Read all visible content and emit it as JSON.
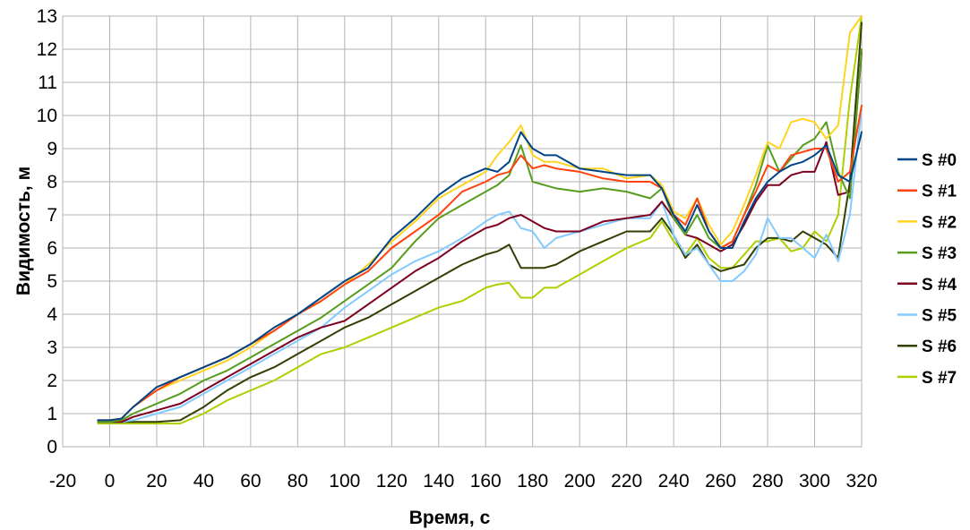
{
  "chart_data": {
    "type": "line",
    "title": "",
    "xlabel": "Время, с",
    "ylabel": "Видимость, м",
    "xlim": [
      -20,
      320
    ],
    "ylim": [
      0,
      13
    ],
    "xticks": [
      -20,
      0,
      20,
      40,
      60,
      80,
      100,
      120,
      140,
      160,
      180,
      200,
      220,
      240,
      260,
      280,
      300,
      320
    ],
    "yticks": [
      0,
      1,
      2,
      3,
      4,
      5,
      6,
      7,
      8,
      9,
      10,
      11,
      12,
      13
    ],
    "grid": true,
    "legend_position": "right",
    "x": [
      -5,
      0,
      5,
      10,
      20,
      30,
      40,
      50,
      60,
      70,
      80,
      90,
      100,
      110,
      120,
      130,
      140,
      150,
      160,
      165,
      170,
      175,
      180,
      185,
      190,
      200,
      210,
      220,
      230,
      235,
      240,
      245,
      250,
      255,
      260,
      265,
      270,
      275,
      280,
      285,
      290,
      295,
      300,
      305,
      310,
      315,
      320
    ],
    "series": [
      {
        "name": "S #0",
        "color": "#004586",
        "values": [
          0.8,
          0.8,
          0.85,
          1.2,
          1.8,
          2.1,
          2.4,
          2.7,
          3.1,
          3.6,
          4.0,
          4.5,
          5.0,
          5.4,
          6.3,
          6.9,
          7.6,
          8.1,
          8.4,
          8.3,
          8.6,
          9.5,
          9.0,
          8.8,
          8.8,
          8.4,
          8.3,
          8.2,
          8.2,
          7.8,
          7.0,
          6.5,
          7.3,
          6.5,
          6.0,
          6.0,
          6.8,
          7.5,
          8.0,
          8.3,
          8.5,
          8.6,
          8.8,
          9.1,
          8.2,
          8.0,
          9.5
        ]
      },
      {
        "name": "S #1",
        "color": "#ff420e",
        "values": [
          0.8,
          0.8,
          0.85,
          1.2,
          1.7,
          2.1,
          2.4,
          2.7,
          3.1,
          3.5,
          4.0,
          4.4,
          4.9,
          5.3,
          6.0,
          6.5,
          7.0,
          7.7,
          8.0,
          8.2,
          8.3,
          8.8,
          8.4,
          8.5,
          8.4,
          8.3,
          8.1,
          8.0,
          8.0,
          7.8,
          7.0,
          6.7,
          7.5,
          6.5,
          6.0,
          6.2,
          7.0,
          7.7,
          8.5,
          8.3,
          8.8,
          8.9,
          9.0,
          9.0,
          8.0,
          8.3,
          10.3
        ]
      },
      {
        "name": "S #2",
        "color": "#ffd320",
        "values": [
          0.8,
          0.8,
          0.85,
          1.2,
          1.7,
          2.0,
          2.3,
          2.6,
          3.0,
          3.5,
          4.0,
          4.4,
          4.9,
          5.5,
          6.2,
          6.8,
          7.5,
          7.9,
          8.3,
          8.8,
          9.2,
          9.7,
          8.8,
          8.6,
          8.6,
          8.4,
          8.4,
          8.1,
          8.2,
          7.9,
          7.1,
          6.9,
          7.5,
          6.7,
          6.1,
          6.5,
          7.3,
          8.2,
          9.2,
          9.0,
          9.8,
          9.9,
          9.8,
          9.3,
          9.7,
          12.5,
          13.0
        ]
      },
      {
        "name": "S #3",
        "color": "#579d1c",
        "values": [
          0.75,
          0.75,
          0.8,
          1.0,
          1.3,
          1.6,
          2.0,
          2.3,
          2.7,
          3.1,
          3.5,
          3.9,
          4.4,
          4.9,
          5.4,
          6.2,
          6.9,
          7.3,
          7.7,
          7.9,
          8.2,
          9.1,
          8.0,
          7.9,
          7.8,
          7.7,
          7.8,
          7.7,
          7.5,
          7.8,
          6.9,
          6.4,
          7.0,
          6.3,
          6.0,
          6.2,
          7.0,
          7.9,
          9.1,
          8.3,
          8.7,
          9.1,
          9.3,
          9.8,
          8.3,
          7.5,
          12.0
        ]
      },
      {
        "name": "S #4",
        "color": "#7e0021",
        "values": [
          0.75,
          0.75,
          0.75,
          0.9,
          1.1,
          1.3,
          1.7,
          2.1,
          2.5,
          2.9,
          3.3,
          3.6,
          3.8,
          4.3,
          4.8,
          5.3,
          5.7,
          6.2,
          6.6,
          6.7,
          6.9,
          7.0,
          6.8,
          6.6,
          6.5,
          6.5,
          6.8,
          6.9,
          7.0,
          7.4,
          6.9,
          6.4,
          6.3,
          6.1,
          5.9,
          6.1,
          6.7,
          7.4,
          7.9,
          7.9,
          8.2,
          8.3,
          8.3,
          9.2,
          7.6,
          7.7,
          11.9
        ]
      },
      {
        "name": "S #5",
        "color": "#83caff",
        "values": [
          0.75,
          0.75,
          0.75,
          0.8,
          1.0,
          1.2,
          1.6,
          2.0,
          2.4,
          2.8,
          3.2,
          3.6,
          4.2,
          4.7,
          5.2,
          5.6,
          5.9,
          6.3,
          6.8,
          7.0,
          7.1,
          6.6,
          6.5,
          6.0,
          6.3,
          6.5,
          6.7,
          6.9,
          6.9,
          7.4,
          6.4,
          5.8,
          6.0,
          5.5,
          5.0,
          5.0,
          5.3,
          5.8,
          6.9,
          6.3,
          6.3,
          6.0,
          5.7,
          6.4,
          5.6,
          7.0,
          10.2
        ]
      },
      {
        "name": "S #6",
        "color": "#314004",
        "values": [
          0.75,
          0.75,
          0.75,
          0.75,
          0.75,
          0.8,
          1.2,
          1.7,
          2.1,
          2.4,
          2.8,
          3.2,
          3.6,
          3.9,
          4.3,
          4.7,
          5.1,
          5.5,
          5.8,
          5.9,
          6.1,
          5.4,
          5.4,
          5.4,
          5.5,
          5.9,
          6.2,
          6.5,
          6.5,
          6.9,
          6.4,
          5.7,
          6.1,
          5.5,
          5.3,
          5.4,
          5.5,
          6.0,
          6.3,
          6.3,
          6.2,
          6.5,
          6.3,
          6.1,
          5.7,
          8.0,
          12.8
        ]
      },
      {
        "name": "S #7",
        "color": "#aecf00",
        "values": [
          0.7,
          0.7,
          0.7,
          0.7,
          0.7,
          0.7,
          1.0,
          1.4,
          1.7,
          2.0,
          2.4,
          2.8,
          3.0,
          3.3,
          3.6,
          3.9,
          4.2,
          4.4,
          4.8,
          4.9,
          4.95,
          4.5,
          4.5,
          4.8,
          4.8,
          5.2,
          5.6,
          6.0,
          6.3,
          6.8,
          6.2,
          5.8,
          6.3,
          5.7,
          5.4,
          5.4,
          5.8,
          6.2,
          6.2,
          6.3,
          5.9,
          6.0,
          6.5,
          6.2,
          7.0,
          10.5,
          13.0
        ]
      }
    ]
  }
}
